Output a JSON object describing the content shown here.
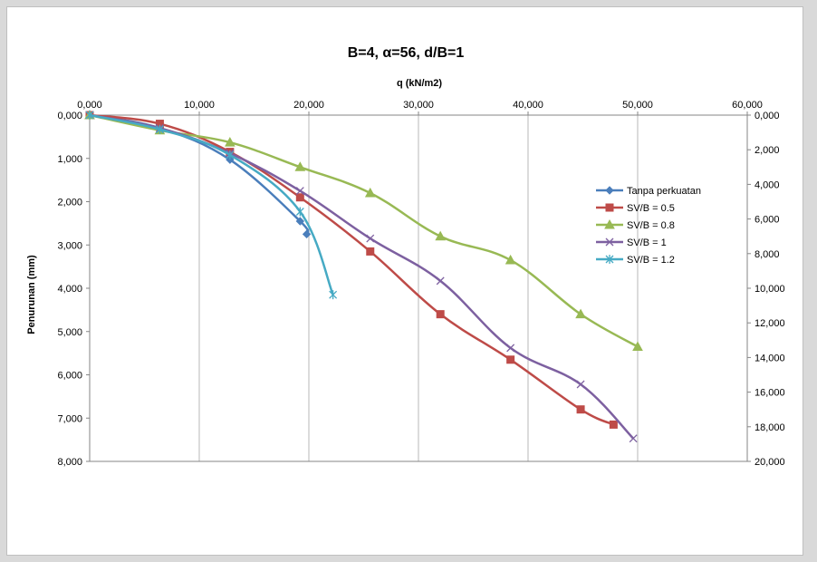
{
  "chart_data": {
    "type": "line",
    "title": "B=4, α=56, d/B=1",
    "xlabel": "q (kN/m2)",
    "ylabel": "Penurunan (mm)",
    "xlim": [
      0,
      60
    ],
    "ylim_left": [
      0,
      8
    ],
    "ylim_right": [
      0,
      20
    ],
    "x_ticks": [
      "0,000",
      "10,000",
      "20,000",
      "30,000",
      "40,000",
      "50,000",
      "60,000"
    ],
    "y_ticks_left": [
      "0,000",
      "1,000",
      "2,000",
      "3,000",
      "4,000",
      "5,000",
      "6,000",
      "7,000",
      "8,000"
    ],
    "y_ticks_right": [
      "0,000",
      "2,000",
      "4,000",
      "6,000",
      "8,000",
      "10,000",
      "12,000",
      "14,000",
      "16,000",
      "18,000",
      "20,000"
    ],
    "y_inverted": true,
    "grid": "vertical",
    "legend_position": "right",
    "series": [
      {
        "name": "Tanpa perkuatan",
        "color": "#4a7ebb",
        "marker": "diamond",
        "x": [
          0,
          6.4,
          12.8,
          19.2,
          19.8
        ],
        "y": [
          0,
          0.3,
          1.03,
          2.45,
          2.75
        ]
      },
      {
        "name": "SV/B = 0.5",
        "color": "#be4b48",
        "marker": "square",
        "x": [
          0,
          6.4,
          12.8,
          19.2,
          25.6,
          32.0,
          38.4,
          44.8,
          47.8
        ],
        "y": [
          0,
          0.2,
          0.85,
          1.9,
          3.15,
          4.6,
          5.65,
          6.8,
          7.15
        ]
      },
      {
        "name": "SV/B = 0.8",
        "color": "#98b954",
        "marker": "triangle",
        "x": [
          0,
          6.4,
          12.8,
          19.2,
          25.6,
          32.0,
          38.4,
          44.8,
          50.0
        ],
        "y": [
          0,
          0.35,
          0.63,
          1.2,
          1.8,
          2.8,
          3.35,
          4.6,
          5.35
        ]
      },
      {
        "name": "SV/B = 1",
        "color": "#7d60a0",
        "marker": "x",
        "x": [
          0,
          6.4,
          12.8,
          19.2,
          25.6,
          32.0,
          38.4,
          44.8,
          49.6
        ],
        "y": [
          0,
          0.3,
          0.88,
          1.75,
          2.85,
          3.83,
          5.38,
          6.22,
          7.47
        ]
      },
      {
        "name": "SV/B = 1.2",
        "color": "#46aac4",
        "marker": "star",
        "x": [
          0,
          6.4,
          12.8,
          19.2,
          22.2
        ],
        "y": [
          0,
          0.33,
          0.92,
          2.23,
          4.15
        ]
      }
    ]
  }
}
